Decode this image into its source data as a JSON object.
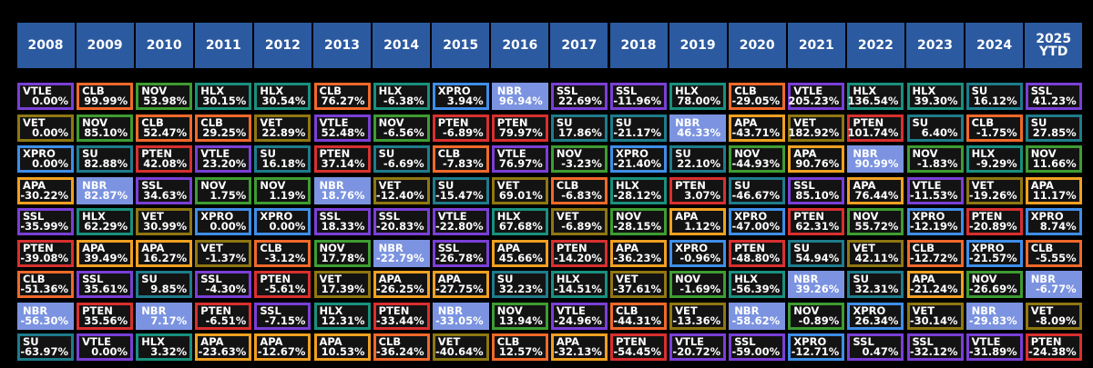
{
  "chart_data": {
    "type": "table",
    "title": "",
    "years": [
      "2008",
      "2009",
      "2010",
      "2011",
      "2012",
      "2013",
      "2014",
      "2015",
      "2016",
      "2017",
      "2018",
      "2019",
      "2020",
      "2021",
      "2022",
      "2023",
      "2024",
      "2025\nYTD"
    ],
    "ticker_colors": {
      "VTLE": "#7a3fd6",
      "CLB": "#f0692a",
      "NOV": "#3e9c32",
      "HLX": "#19907e",
      "XPRO": "#3f8ee8",
      "NBR": "#7b93e0",
      "SSL": "#7a3fd6",
      "SU": "#1e7c8c",
      "VET": "#8f7712",
      "PTEN": "#d8302f",
      "APA": "#f0a020"
    },
    "columns": [
      [
        [
          "VTLE",
          "0.00%"
        ],
        [
          "VET",
          "0.00%"
        ],
        [
          "XPRO",
          "0.00%"
        ],
        [
          "APA",
          "-30.22%"
        ],
        [
          "SSL",
          "-35.99%"
        ],
        [
          "PTEN",
          "-39.08%"
        ],
        [
          "CLB",
          "-51.36%"
        ],
        [
          "NBR",
          "-56.30%"
        ],
        [
          "SU",
          "-63.97%"
        ]
      ],
      [
        [
          "CLB",
          "99.99%"
        ],
        [
          "NOV",
          "85.10%"
        ],
        [
          "SU",
          "82.88%"
        ],
        [
          "NBR",
          "82.87%"
        ],
        [
          "HLX",
          "62.29%"
        ],
        [
          "APA",
          "39.49%"
        ],
        [
          "SSL",
          "35.61%"
        ],
        [
          "PTEN",
          "35.56%"
        ],
        [
          "VTLE",
          "0.00%"
        ]
      ],
      [
        [
          "NOV",
          "53.98%"
        ],
        [
          "CLB",
          "52.47%"
        ],
        [
          "PTEN",
          "42.08%"
        ],
        [
          "SSL",
          "34.63%"
        ],
        [
          "VET",
          "30.99%"
        ],
        [
          "APA",
          "16.27%"
        ],
        [
          "SU",
          "9.85%"
        ],
        [
          "NBR",
          "7.17%"
        ],
        [
          "HLX",
          "3.32%"
        ]
      ],
      [
        [
          "HLX",
          "30.15%"
        ],
        [
          "CLB",
          "29.25%"
        ],
        [
          "VTLE",
          "23.20%"
        ],
        [
          "NOV",
          "1.75%"
        ],
        [
          "XPRO",
          "0.00%"
        ],
        [
          "VET",
          "-1.37%"
        ],
        [
          "SSL",
          "-4.30%"
        ],
        [
          "PTEN",
          "-6.51%"
        ],
        [
          "APA",
          "-23.63%"
        ]
      ],
      [
        [
          "HLX",
          "30.54%"
        ],
        [
          "VET",
          "22.89%"
        ],
        [
          "SU",
          "16.18%"
        ],
        [
          "NOV",
          "1.19%"
        ],
        [
          "XPRO",
          "0.00%"
        ],
        [
          "CLB",
          "-3.12%"
        ],
        [
          "PTEN",
          "-5.61%"
        ],
        [
          "SSL",
          "-7.15%"
        ],
        [
          "APA",
          "-12.67%"
        ]
      ],
      [
        [
          "CLB",
          "76.27%"
        ],
        [
          "VTLE",
          "52.48%"
        ],
        [
          "PTEN",
          "37.14%"
        ],
        [
          "NBR",
          "18.76%"
        ],
        [
          "SSL",
          "18.33%"
        ],
        [
          "NOV",
          "17.78%"
        ],
        [
          "VET",
          "17.39%"
        ],
        [
          "HLX",
          "12.31%"
        ],
        [
          "APA",
          "10.53%"
        ]
      ],
      [
        [
          "HLX",
          "-6.38%"
        ],
        [
          "NOV",
          "-6.56%"
        ],
        [
          "SU",
          "-6.69%"
        ],
        [
          "VET",
          "-12.40%"
        ],
        [
          "SSL",
          "-20.83%"
        ],
        [
          "NBR",
          "-22.79%"
        ],
        [
          "APA",
          "-26.25%"
        ],
        [
          "PTEN",
          "-33.44%"
        ],
        [
          "CLB",
          "-36.24%"
        ]
      ],
      [
        [
          "XPRO",
          "3.94%"
        ],
        [
          "PTEN",
          "-6.89%"
        ],
        [
          "CLB",
          "-7.83%"
        ],
        [
          "SU",
          "-15.47%"
        ],
        [
          "VTLE",
          "-22.80%"
        ],
        [
          "SSL",
          "-26.78%"
        ],
        [
          "APA",
          "-27.75%"
        ],
        [
          "NBR",
          "-33.05%"
        ],
        [
          "VET",
          "-40.64%"
        ]
      ],
      [
        [
          "NBR",
          "96.94%"
        ],
        [
          "PTEN",
          "79.97%"
        ],
        [
          "VTLE",
          "76.97%"
        ],
        [
          "VET",
          "69.01%"
        ],
        [
          "HLX",
          "67.68%"
        ],
        [
          "APA",
          "45.66%"
        ],
        [
          "SU",
          "32.23%"
        ],
        [
          "NOV",
          "13.94%"
        ],
        [
          "CLB",
          "12.57%"
        ]
      ],
      [
        [
          "SSL",
          "22.69%"
        ],
        [
          "SU",
          "17.86%"
        ],
        [
          "NOV",
          "-3.23%"
        ],
        [
          "CLB",
          "-6.83%"
        ],
        [
          "VET",
          "-6.89%"
        ],
        [
          "PTEN",
          "-14.20%"
        ],
        [
          "HLX",
          "-14.51%"
        ],
        [
          "VTLE",
          "-24.96%"
        ],
        [
          "APA",
          "-32.13%"
        ]
      ],
      [
        [
          "SSL",
          "-11.96%"
        ],
        [
          "SU",
          "-21.17%"
        ],
        [
          "XPRO",
          "-21.40%"
        ],
        [
          "HLX",
          "-28.12%"
        ],
        [
          "NOV",
          "-28.15%"
        ],
        [
          "APA",
          "-36.23%"
        ],
        [
          "VET",
          "-37.61%"
        ],
        [
          "CLB",
          "-44.31%"
        ],
        [
          "PTEN",
          "-54.45%"
        ]
      ],
      [
        [
          "HLX",
          "78.00%"
        ],
        [
          "NBR",
          "46.33%"
        ],
        [
          "SU",
          "22.10%"
        ],
        [
          "PTEN",
          "3.07%"
        ],
        [
          "APA",
          "1.12%"
        ],
        [
          "XPRO",
          "-0.96%"
        ],
        [
          "NOV",
          "-1.69%"
        ],
        [
          "VET",
          "-13.36%"
        ],
        [
          "VTLE",
          "-20.72%"
        ]
      ],
      [
        [
          "CLB",
          "-29.05%"
        ],
        [
          "APA",
          "-43.71%"
        ],
        [
          "NOV",
          "-44.93%"
        ],
        [
          "SU",
          "-46.67%"
        ],
        [
          "XPRO",
          "-47.00%"
        ],
        [
          "PTEN",
          "-48.80%"
        ],
        [
          "HLX",
          "-56.39%"
        ],
        [
          "NBR",
          "-58.62%"
        ],
        [
          "SSL",
          "-59.00%"
        ]
      ],
      [
        [
          "VTLE",
          "205.23%"
        ],
        [
          "VET",
          "182.92%"
        ],
        [
          "APA",
          "90.76%"
        ],
        [
          "SSL",
          "85.10%"
        ],
        [
          "PTEN",
          "62.31%"
        ],
        [
          "SU",
          "54.94%"
        ],
        [
          "NBR",
          "39.26%"
        ],
        [
          "NOV",
          "-0.89%"
        ],
        [
          "XPRO",
          "-12.71%"
        ]
      ],
      [
        [
          "HLX",
          "136.54%"
        ],
        [
          "PTEN",
          "101.74%"
        ],
        [
          "NBR",
          "90.99%"
        ],
        [
          "APA",
          "76.44%"
        ],
        [
          "NOV",
          "55.72%"
        ],
        [
          "VET",
          "42.11%"
        ],
        [
          "SU",
          "32.31%"
        ],
        [
          "XPRO",
          "26.34%"
        ],
        [
          "SSL",
          "0.47%"
        ]
      ],
      [
        [
          "HLX",
          "39.30%"
        ],
        [
          "SU",
          "6.40%"
        ],
        [
          "NOV",
          "-1.83%"
        ],
        [
          "VTLE",
          "-11.53%"
        ],
        [
          "XPRO",
          "-12.19%"
        ],
        [
          "CLB",
          "-12.72%"
        ],
        [
          "APA",
          "-21.24%"
        ],
        [
          "VET",
          "-30.14%"
        ],
        [
          "SSL",
          "-32.12%"
        ]
      ],
      [
        [
          "SU",
          "16.12%"
        ],
        [
          "CLB",
          "-1.75%"
        ],
        [
          "HLX",
          "-9.29%"
        ],
        [
          "VET",
          "-19.26%"
        ],
        [
          "PTEN",
          "-20.89%"
        ],
        [
          "XPRO",
          "-21.57%"
        ],
        [
          "NOV",
          "-26.69%"
        ],
        [
          "NBR",
          "-29.83%"
        ],
        [
          "VTLE",
          "-31.89%"
        ]
      ],
      [
        [
          "SSL",
          "41.23%"
        ],
        [
          "SU",
          "27.85%"
        ],
        [
          "NOV",
          "11.66%"
        ],
        [
          "APA",
          "11.17%"
        ],
        [
          "XPRO",
          "8.74%"
        ],
        [
          "CLB",
          "-5.55%"
        ],
        [
          "NBR",
          "-6.77%"
        ],
        [
          "VET",
          "-8.09%"
        ],
        [
          "PTEN",
          "-24.38%"
        ]
      ]
    ]
  }
}
